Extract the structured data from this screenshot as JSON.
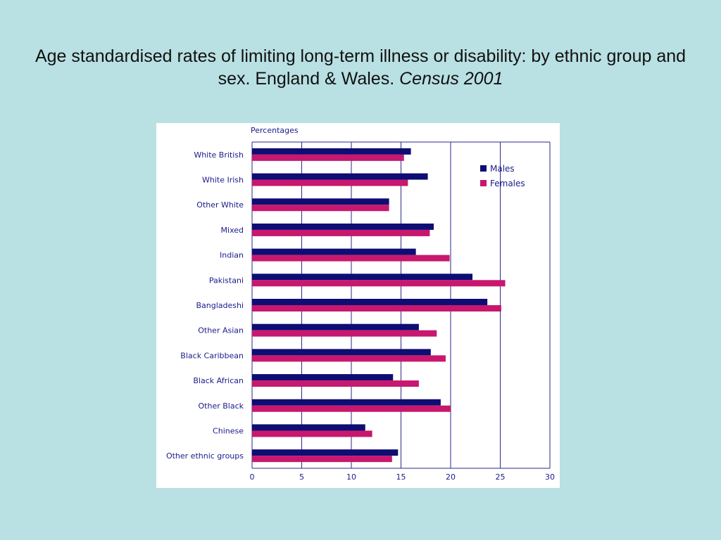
{
  "slide": {
    "title_main": "Age standardised rates of limiting long-term illness or disability: by ethnic group and sex. England & Wales.",
    "title_source": "Census 2001"
  },
  "chart_data": {
    "type": "bar",
    "orientation": "horizontal",
    "unit_label": "Percentages",
    "categories": [
      "White British",
      "White Irish",
      "Other White",
      "Mixed",
      "Indian",
      "Pakistani",
      "Bangladeshi",
      "Other Asian",
      "Black Caribbean",
      "Black African",
      "Other Black",
      "Chinese",
      "Other ethnic groups"
    ],
    "series": [
      {
        "name": "Males",
        "color": "#0d0d73",
        "values": [
          16.0,
          17.7,
          13.8,
          18.3,
          16.5,
          22.2,
          23.7,
          16.8,
          18.0,
          14.2,
          19.0,
          11.4,
          14.7
        ]
      },
      {
        "name": "Females",
        "color": "#c8176e",
        "values": [
          15.3,
          15.7,
          13.8,
          17.9,
          19.9,
          25.5,
          25.1,
          18.6,
          19.5,
          16.8,
          20.0,
          12.1,
          14.1
        ]
      }
    ],
    "x_ticks": [
      "0",
      "5",
      "10",
      "15",
      "20",
      "25",
      "30"
    ],
    "xlim": [
      0,
      30
    ],
    "grid": "vertical",
    "legend_position": "top-right",
    "grid_color": "#2a2a8a",
    "text_color": "#1a1a8c"
  }
}
